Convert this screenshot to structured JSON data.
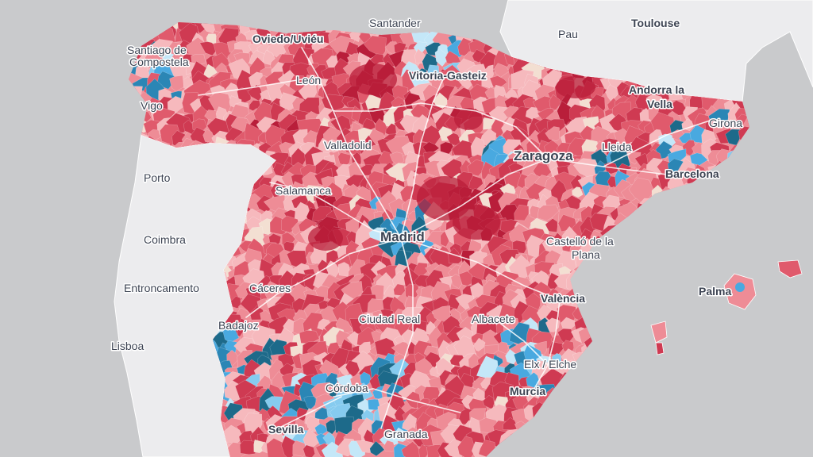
{
  "map": {
    "colors": {
      "sea": "#c9cacc",
      "land": "#ececee",
      "neutral": "#f3dfd2",
      "red_scale": [
        "#b91e3a",
        "#cf3a52",
        "#e05a6c",
        "#ee8c96",
        "#f6b9bd"
      ],
      "blue_scale": [
        "#1d6a8a",
        "#2b86b5",
        "#49a9e0",
        "#86cbef",
        "#c4e7f8"
      ],
      "roads": "#ffffff"
    },
    "cities": [
      {
        "id": "santander",
        "name": "Santander"
      },
      {
        "id": "oviedo",
        "name": "Oviedo/Uviéu"
      },
      {
        "id": "santiago",
        "name": "Santiago de",
        "name2": "Compostela"
      },
      {
        "id": "vitoria",
        "name": "Vitoria-Gasteiz"
      },
      {
        "id": "leon",
        "name": "León"
      },
      {
        "id": "vigo",
        "name": "Vigo"
      },
      {
        "id": "pau",
        "name": "Pau"
      },
      {
        "id": "toulouse",
        "name": "Toulouse"
      },
      {
        "id": "andorra",
        "name": "Andorra la",
        "name2": "Vella"
      },
      {
        "id": "girona",
        "name": "Girona"
      },
      {
        "id": "valladolid",
        "name": "Valladolid"
      },
      {
        "id": "zaragoza",
        "name": "Zaragoza"
      },
      {
        "id": "lleida",
        "name": "Lleida"
      },
      {
        "id": "barcelona",
        "name": "Barcelona"
      },
      {
        "id": "porto",
        "name": "Porto"
      },
      {
        "id": "salamanca",
        "name": "Salamanca"
      },
      {
        "id": "madrid",
        "name": "Madrid"
      },
      {
        "id": "coimbra",
        "name": "Coimbra"
      },
      {
        "id": "castello",
        "name": "Castelló de la",
        "name2": "Plana"
      },
      {
        "id": "entroncamento",
        "name": "Entroncamento"
      },
      {
        "id": "caceres",
        "name": "Cáceres"
      },
      {
        "id": "palma",
        "name": "Palma"
      },
      {
        "id": "valencia",
        "name": "València"
      },
      {
        "id": "badajoz",
        "name": "Badajoz"
      },
      {
        "id": "ciudadreal",
        "name": "Ciudad Real"
      },
      {
        "id": "albacete",
        "name": "Albacete"
      },
      {
        "id": "lisboa",
        "name": "Lisboa"
      },
      {
        "id": "elx",
        "name": "Elx / Elche"
      },
      {
        "id": "cordoba",
        "name": "Córdoba"
      },
      {
        "id": "murcia",
        "name": "Murcia"
      },
      {
        "id": "sevilla",
        "name": "Sevilla"
      },
      {
        "id": "granada",
        "name": "Granada"
      }
    ]
  }
}
